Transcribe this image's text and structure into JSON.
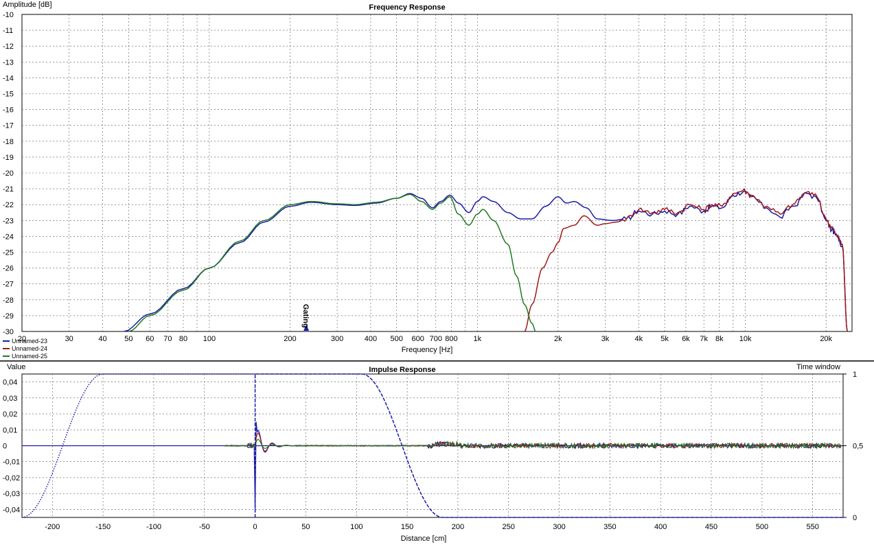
{
  "colors": {
    "series1": "#1a1aa6",
    "series2": "#a01818",
    "series3": "#1f7a1f",
    "grid": "#555555",
    "window": "#1a1aa6"
  },
  "chart_data": [
    {
      "type": "line",
      "title": "Frequency Response",
      "xlabel": "Frequency [Hz]",
      "ylabel": "Amplitude [dB]",
      "x_scale": "log",
      "xlim": [
        20,
        25000
      ],
      "ylim": [
        -30,
        -10
      ],
      "grid": true,
      "y_ticks": [
        "-10",
        "-11",
        "-12",
        "-13",
        "-14",
        "-15",
        "-16",
        "-17",
        "-18",
        "-19",
        "-20",
        "-21",
        "-22",
        "-23",
        "-24",
        "-25",
        "-26",
        "-27",
        "-28",
        "-29",
        "-30"
      ],
      "x_ticks": [
        {
          "v": 20,
          "label": "20"
        },
        {
          "v": 30,
          "label": "30"
        },
        {
          "v": 40,
          "label": "40"
        },
        {
          "v": 50,
          "label": "50"
        },
        {
          "v": 60,
          "label": "60"
        },
        {
          "v": 70,
          "label": "70"
        },
        {
          "v": 80,
          "label": "80"
        },
        {
          "v": 100,
          "label": "100"
        },
        {
          "v": 200,
          "label": "200"
        },
        {
          "v": 300,
          "label": "300"
        },
        {
          "v": 400,
          "label": "400"
        },
        {
          "v": 500,
          "label": "500"
        },
        {
          "v": 600,
          "label": "600"
        },
        {
          "v": 700,
          "label": "700"
        },
        {
          "v": 800,
          "label": "800"
        },
        {
          "v": 1000,
          "label": "1k"
        },
        {
          "v": 2000,
          "label": "2k"
        },
        {
          "v": 3000,
          "label": "3k"
        },
        {
          "v": 4000,
          "label": "4k"
        },
        {
          "v": 5000,
          "label": "5k"
        },
        {
          "v": 6000,
          "label": "6k"
        },
        {
          "v": 7000,
          "label": "7k"
        },
        {
          "v": 8000,
          "label": "8k"
        },
        {
          "v": 10000,
          "label": "10k"
        },
        {
          "v": 20000,
          "label": "20k"
        }
      ],
      "marker": {
        "label": "Gating",
        "x": 230
      },
      "legend": {
        "placement": "bottom-left"
      },
      "series": [
        {
          "name": "Unnamed-23",
          "color": "#1a1aa6",
          "points": [
            [
              48,
              -30
            ],
            [
              60,
              -28.9
            ],
            [
              80,
              -27.3
            ],
            [
              100,
              -26
            ],
            [
              130,
              -24.4
            ],
            [
              160,
              -23.1
            ],
            [
              200,
              -22.1
            ],
            [
              240,
              -21.85
            ],
            [
              300,
              -22
            ],
            [
              350,
              -22.05
            ],
            [
              420,
              -21.9
            ],
            [
              500,
              -21.6
            ],
            [
              560,
              -21.3
            ],
            [
              620,
              -21.6
            ],
            [
              680,
              -22.2
            ],
            [
              730,
              -21.8
            ],
            [
              790,
              -21.4
            ],
            [
              850,
              -21.9
            ],
            [
              930,
              -22.5
            ],
            [
              1000,
              -21.8
            ],
            [
              1050,
              -21.5
            ],
            [
              1150,
              -21.8
            ],
            [
              1300,
              -22.5
            ],
            [
              1450,
              -22.9
            ],
            [
              1600,
              -22.9
            ],
            [
              1800,
              -22.1
            ],
            [
              2000,
              -21.5
            ],
            [
              2150,
              -21.9
            ],
            [
              2300,
              -21.8
            ],
            [
              2550,
              -22.2
            ],
            [
              2800,
              -22.9
            ],
            [
              3200,
              -23
            ],
            [
              3600,
              -22.9
            ],
            [
              4000,
              -22.4
            ],
            [
              4500,
              -22.6
            ],
            [
              5000,
              -22.4
            ],
            [
              5600,
              -22.6
            ],
            [
              6200,
              -22.1
            ],
            [
              7000,
              -22.4
            ],
            [
              7500,
              -22.1
            ],
            [
              8200,
              -22.2
            ],
            [
              9000,
              -21.4
            ],
            [
              9800,
              -21.2
            ],
            [
              10500,
              -21.5
            ],
            [
              12000,
              -22.2
            ],
            [
              13500,
              -22.8
            ],
            [
              15000,
              -22.1
            ],
            [
              17000,
              -21.3
            ],
            [
              18500,
              -21.6
            ],
            [
              20000,
              -23
            ],
            [
              21000,
              -23.6
            ],
            [
              22000,
              -24
            ],
            [
              23000,
              -24.6
            ],
            [
              24000,
              -30
            ]
          ]
        },
        {
          "name": "Unnamed-24",
          "color": "#a01818",
          "points": [
            [
              1500,
              -30
            ],
            [
              1600,
              -28.3
            ],
            [
              1750,
              -26
            ],
            [
              1900,
              -25
            ],
            [
              2000,
              -24.4
            ],
            [
              2100,
              -23.5
            ],
            [
              2300,
              -23.3
            ],
            [
              2500,
              -22.7
            ],
            [
              2800,
              -23.3
            ],
            [
              3000,
              -23.2
            ],
            [
              3300,
              -23.1
            ],
            [
              3600,
              -22.9
            ],
            [
              4000,
              -22.3
            ],
            [
              4500,
              -22.5
            ],
            [
              5000,
              -22.3
            ],
            [
              5600,
              -22.5
            ],
            [
              6200,
              -22
            ],
            [
              7000,
              -22.3
            ],
            [
              7500,
              -22
            ],
            [
              8200,
              -22.1
            ],
            [
              9000,
              -21.3
            ],
            [
              9800,
              -21.1
            ],
            [
              10500,
              -21.4
            ],
            [
              12000,
              -22.1
            ],
            [
              13500,
              -22.6
            ],
            [
              15000,
              -22
            ],
            [
              17000,
              -21.2
            ],
            [
              18500,
              -21.5
            ],
            [
              20000,
              -22.9
            ],
            [
              21000,
              -23.4
            ],
            [
              22000,
              -24
            ],
            [
              23000,
              -24.5
            ],
            [
              24000,
              -30
            ]
          ]
        },
        {
          "name": "Unnamed-25",
          "color": "#1f7a1f",
          "points": [
            [
              50,
              -30
            ],
            [
              60,
              -29
            ],
            [
              80,
              -27.4
            ],
            [
              100,
              -26
            ],
            [
              130,
              -24.3
            ],
            [
              160,
              -23
            ],
            [
              200,
              -22
            ],
            [
              240,
              -21.8
            ],
            [
              300,
              -21.95
            ],
            [
              350,
              -22
            ],
            [
              420,
              -21.85
            ],
            [
              500,
              -21.6
            ],
            [
              560,
              -21.35
            ],
            [
              620,
              -21.8
            ],
            [
              680,
              -22.3
            ],
            [
              730,
              -21.9
            ],
            [
              790,
              -21.5
            ],
            [
              850,
              -22.6
            ],
            [
              930,
              -23.3
            ],
            [
              1000,
              -22.6
            ],
            [
              1050,
              -22.3
            ],
            [
              1150,
              -23
            ],
            [
              1300,
              -24.5
            ],
            [
              1400,
              -26.5
            ],
            [
              1500,
              -28.3
            ],
            [
              1600,
              -29.5
            ],
            [
              1650,
              -30
            ]
          ]
        }
      ]
    },
    {
      "type": "line",
      "title": "Impulse Response",
      "xlabel": "Distance [cm]",
      "ylabel": "Value",
      "y2label": "Time window",
      "xlim": [
        -230,
        580
      ],
      "ylim": [
        -0.045,
        0.045
      ],
      "y2lim": [
        0,
        1
      ],
      "grid": true,
      "x_ticks": [
        "-200",
        "-150",
        "-100",
        "-50",
        "0",
        "50",
        "100",
        "150",
        "200",
        "250",
        "300",
        "350",
        "400",
        "450",
        "500",
        "550"
      ],
      "y_ticks": [
        "0,04",
        "0,03",
        "0,02",
        "0,01",
        "0",
        "-0,01",
        "-0,02",
        "-0,03",
        "-0,04"
      ],
      "y2_ticks": [
        "1",
        "0,5",
        "0"
      ],
      "series": [
        {
          "name": "Unnamed-23",
          "color": "#1a1aa6",
          "description": "impulse peaking near 0 cm, ripples to 580 cm"
        },
        {
          "name": "Unnamed-24",
          "color": "#a01818"
        },
        {
          "name": "Unnamed-25",
          "color": "#1f7a1f"
        }
      ]
    }
  ]
}
